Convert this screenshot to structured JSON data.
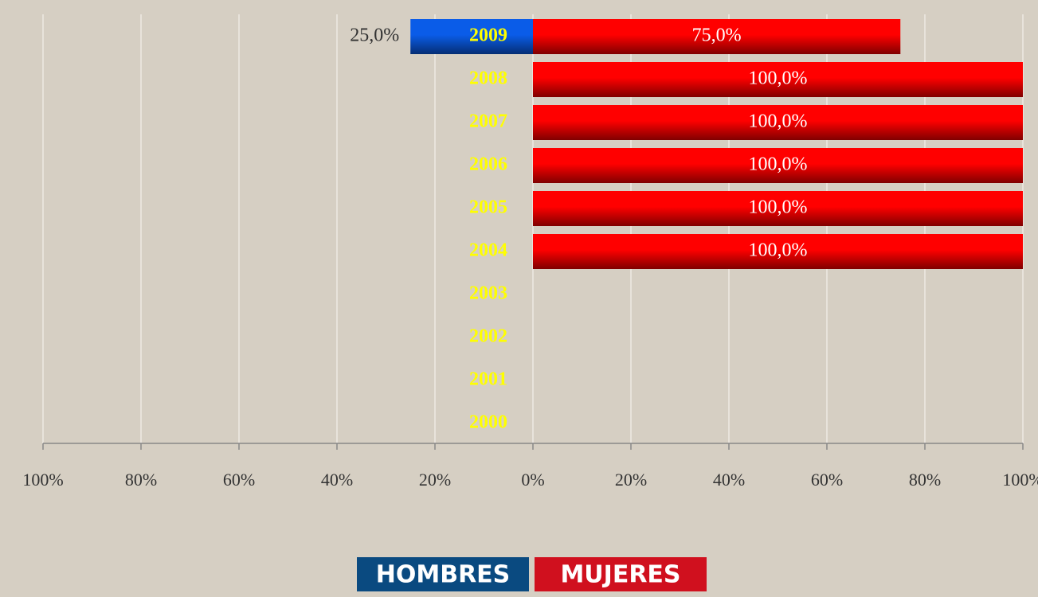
{
  "chart_data": {
    "type": "pyramid",
    "categories": [
      "2009",
      "2008",
      "2007",
      "2006",
      "2005",
      "2004",
      "2003",
      "2002",
      "2001",
      "2000"
    ],
    "series": [
      {
        "name": "HOMBRES",
        "color": "#0a5ce8",
        "side": "left",
        "values": [
          25,
          null,
          null,
          null,
          null,
          null,
          null,
          null,
          null,
          null
        ],
        "value_labels": [
          "25,0%",
          null,
          null,
          null,
          null,
          null,
          null,
          null,
          null,
          null
        ]
      },
      {
        "name": "MUJERES",
        "color": "#ff0000",
        "side": "right",
        "values": [
          75,
          100,
          100,
          100,
          100,
          100,
          null,
          null,
          null,
          null
        ],
        "value_labels": [
          "75,0%",
          "100,0%",
          "100,0%",
          "100,0%",
          "100,0%",
          "100,0%",
          null,
          null,
          null,
          null
        ]
      }
    ],
    "xlim": [
      -100,
      100
    ],
    "xticks": [
      {
        "value": -100,
        "label": "100%"
      },
      {
        "value": -80,
        "label": "80%"
      },
      {
        "value": -60,
        "label": "60%"
      },
      {
        "value": -40,
        "label": "40%"
      },
      {
        "value": -20,
        "label": "20%"
      },
      {
        "value": 0,
        "label": "0%"
      },
      {
        "value": 20,
        "label": "20%"
      },
      {
        "value": 40,
        "label": "40%"
      },
      {
        "value": 60,
        "label": "60%"
      },
      {
        "value": 80,
        "label": "80%"
      },
      {
        "value": 100,
        "label": "100%"
      }
    ],
    "grid": true
  }
}
